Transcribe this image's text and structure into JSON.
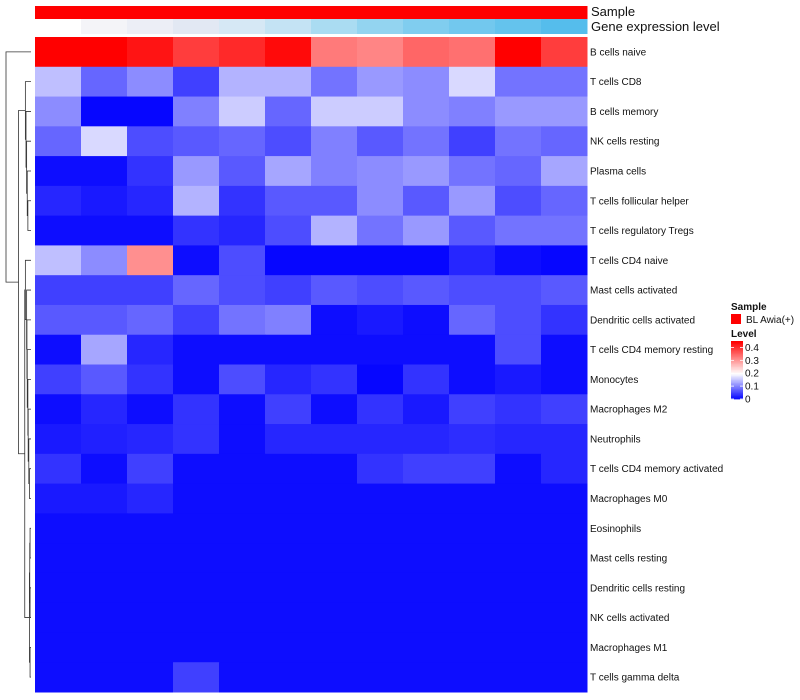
{
  "chart_data": {
    "type": "heatmap",
    "annotation_tracks": [
      {
        "key": "sample",
        "label": "Sample"
      },
      {
        "key": "gene_expression",
        "label": "Gene expression level"
      }
    ],
    "sample_track_color": "#ff0000",
    "gene_expression_colors": [
      "#ffffff",
      "#f4f4f8",
      "#eceef6",
      "#e2e8f3",
      "#d6e8f5",
      "#c4e3f4",
      "#aadcf2",
      "#93d4f0",
      "#80cdef",
      "#72c8ee",
      "#64c3ed",
      "#55bdec"
    ],
    "rows": [
      "B cells naive",
      "T cells CD8",
      "B cells memory",
      "NK cells resting",
      "Plasma cells",
      "T cells follicular helper",
      "T cells regulatory  Tregs",
      "T cells CD4 naive",
      "Mast cells activated",
      "Dendritic cells activated",
      "T cells CD4 memory resting",
      "Monocytes",
      "Macrophages M2",
      "Neutrophils",
      "T cells CD4 memory activated",
      "Macrophages M0",
      "Eosinophils",
      "Mast cells resting",
      "Dendritic cells resting",
      "NK cells activated",
      "Macrophages M1",
      "T cells gamma delta"
    ],
    "values": [
      [
        0.45,
        0.45,
        0.43,
        0.39,
        0.41,
        0.44,
        0.33,
        0.32,
        0.35,
        0.34,
        0.45,
        0.39
      ],
      [
        0.15,
        0.08,
        0.11,
        0.05,
        0.14,
        0.14,
        0.09,
        0.12,
        0.11,
        0.17,
        0.09,
        0.09
      ],
      [
        0.11,
        0.005,
        0.005,
        0.1,
        0.16,
        0.08,
        0.16,
        0.16,
        0.11,
        0.1,
        0.12,
        0.12
      ],
      [
        0.08,
        0.17,
        0.06,
        0.07,
        0.08,
        0.06,
        0.1,
        0.07,
        0.09,
        0.05,
        0.09,
        0.08
      ],
      [
        0.01,
        0.01,
        0.04,
        0.12,
        0.07,
        0.13,
        0.1,
        0.11,
        0.12,
        0.09,
        0.08,
        0.13
      ],
      [
        0.03,
        0.02,
        0.03,
        0.14,
        0.04,
        0.07,
        0.07,
        0.11,
        0.07,
        0.12,
        0.06,
        0.08
      ],
      [
        0.01,
        0.01,
        0.01,
        0.04,
        0.03,
        0.06,
        0.14,
        0.09,
        0.12,
        0.07,
        0.09,
        0.09
      ],
      [
        0.15,
        0.11,
        0.31,
        0.01,
        0.06,
        0.005,
        0.005,
        0.005,
        0.005,
        0.03,
        0.01,
        0.005
      ],
      [
        0.05,
        0.05,
        0.05,
        0.08,
        0.06,
        0.05,
        0.07,
        0.06,
        0.07,
        0.06,
        0.06,
        0.07
      ],
      [
        0.07,
        0.07,
        0.08,
        0.05,
        0.09,
        0.1,
        0.01,
        0.02,
        0.01,
        0.08,
        0.06,
        0.04
      ],
      [
        0.01,
        0.13,
        0.03,
        0.01,
        0.01,
        0.01,
        0.01,
        0.01,
        0.01,
        0.01,
        0.06,
        0.01
      ],
      [
        0.05,
        0.07,
        0.04,
        0.01,
        0.06,
        0.03,
        0.04,
        0.005,
        0.04,
        0.01,
        0.02,
        0.01
      ],
      [
        0.01,
        0.03,
        0.01,
        0.04,
        0.01,
        0.05,
        0.01,
        0.04,
        0.02,
        0.05,
        0.04,
        0.05
      ],
      [
        0.02,
        0.025,
        0.03,
        0.04,
        0.01,
        0.03,
        0.03,
        0.03,
        0.03,
        0.035,
        0.03,
        0.03
      ],
      [
        0.04,
        0.01,
        0.05,
        0.01,
        0.01,
        0.01,
        0.01,
        0.04,
        0.05,
        0.05,
        0.01,
        0.03
      ],
      [
        0.02,
        0.02,
        0.03,
        0.01,
        0.01,
        0.01,
        0.01,
        0.01,
        0.01,
        0.01,
        0.01,
        0.01
      ],
      [
        0.01,
        0.01,
        0.01,
        0.01,
        0.01,
        0.01,
        0.01,
        0.01,
        0.01,
        0.01,
        0.01,
        0.01
      ],
      [
        0.01,
        0.01,
        0.01,
        0.01,
        0.01,
        0.01,
        0.01,
        0.01,
        0.01,
        0.01,
        0.01,
        0.01
      ],
      [
        0.01,
        0.01,
        0.01,
        0.01,
        0.01,
        0.01,
        0.01,
        0.01,
        0.01,
        0.01,
        0.01,
        0.01
      ],
      [
        0.01,
        0.01,
        0.01,
        0.01,
        0.01,
        0.01,
        0.01,
        0.01,
        0.01,
        0.01,
        0.01,
        0.01
      ],
      [
        0.01,
        0.01,
        0.01,
        0.01,
        0.01,
        0.01,
        0.01,
        0.01,
        0.01,
        0.01,
        0.01,
        0.01
      ],
      [
        0.01,
        0.01,
        0.01,
        0.05,
        0.01,
        0.01,
        0.01,
        0.01,
        0.01,
        0.01,
        0.01,
        0.01
      ]
    ],
    "color_scale": {
      "min": 0,
      "mid": 0.2,
      "max": 0.45,
      "low_color": "#0000ff",
      "mid_color": "#ffffff",
      "high_color": "#ff0000"
    },
    "legend": {
      "position": "right",
      "sample_title": "Sample",
      "sample_entries": [
        {
          "label": "BL Awia(+)",
          "color": "#ff0000"
        }
      ],
      "level_title": "Level",
      "level_ticks": [
        {
          "value": 0.4,
          "label": "0.4"
        },
        {
          "value": 0.3,
          "label": "0.3"
        },
        {
          "value": 0.2,
          "label": "0.2"
        },
        {
          "value": 0.1,
          "label": "0.1"
        },
        {
          "value": 0,
          "label": "0"
        }
      ]
    },
    "dendrogram": {
      "side": "left",
      "merges": [
        [
          -17,
          -18
        ],
        [
          -19,
          -20
        ],
        [
          1,
          2
        ],
        [
          -21,
          -22
        ],
        [
          3,
          4
        ],
        [
          -15,
          -16
        ],
        [
          -14,
          6
        ],
        [
          -13,
          7
        ],
        [
          -12,
          8
        ],
        [
          -11,
          9
        ],
        [
          -10,
          10
        ],
        [
          -9,
          11
        ],
        [
          -8,
          12
        ],
        [
          13,
          5
        ],
        [
          -6,
          -7
        ],
        [
          -5,
          15
        ],
        [
          -4,
          16
        ],
        [
          -3,
          17
        ],
        [
          -2,
          18
        ],
        [
          14,
          19
        ],
        [
          -1,
          20
        ]
      ],
      "heights": [
        0.03,
        0.03,
        0.04,
        0.03,
        0.05,
        0.05,
        0.07,
        0.09,
        0.1,
        0.12,
        0.13,
        0.14,
        0.18,
        0.2,
        0.1,
        0.12,
        0.14,
        0.16,
        0.18,
        0.4,
        0.8
      ]
    }
  }
}
